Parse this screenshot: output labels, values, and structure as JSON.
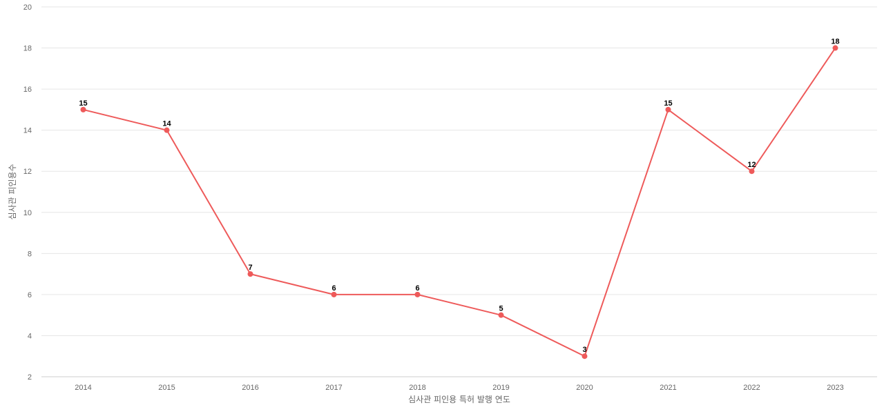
{
  "chart_data": {
    "type": "line",
    "title": "",
    "xlabel": "심사관 피인용 특허 발행 연도",
    "ylabel": "심사관 피인용수",
    "categories": [
      "2014",
      "2015",
      "2016",
      "2017",
      "2018",
      "2019",
      "2020",
      "2021",
      "2022",
      "2023"
    ],
    "series": [
      {
        "values": [
          15,
          14,
          7,
          6,
          6,
          5,
          3,
          15,
          12,
          18
        ],
        "color": "#ee5a5a"
      }
    ],
    "ylim": [
      2,
      20
    ],
    "y_ticks": [
      2,
      4,
      6,
      8,
      10,
      12,
      14,
      16,
      18,
      20
    ],
    "grid": true,
    "legend": "none",
    "data_labels": true
  }
}
